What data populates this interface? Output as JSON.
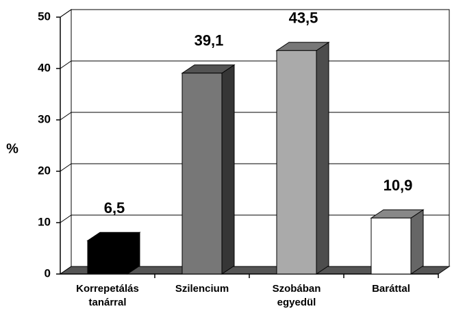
{
  "chart_data": {
    "type": "bar3d",
    "ylabel": "%",
    "categories": [
      "Korrepetálás tanárral",
      "Szilencium",
      "Szobában egyedül",
      "Baráttal"
    ],
    "values": [
      6.5,
      39.1,
      43.5,
      10.9
    ],
    "value_labels": [
      "6,5",
      "39,1",
      "43,5",
      "10,9"
    ],
    "colors": [
      "#000000",
      "#777777",
      "#aaaaaa",
      "#ffffff"
    ],
    "ylim": [
      0,
      50
    ],
    "yticks": [
      0,
      10,
      20,
      30,
      40,
      50
    ],
    "grid": true
  }
}
